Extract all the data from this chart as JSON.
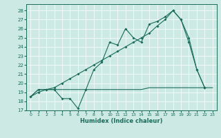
{
  "bg_color": "#cce9e4",
  "line_color": "#1a6b5a",
  "xlabel": "Humidex (Indice chaleur)",
  "xlim": [
    -0.5,
    23.5
  ],
  "ylim": [
    17,
    28.7
  ],
  "yticks": [
    17,
    18,
    19,
    20,
    21,
    22,
    23,
    24,
    25,
    26,
    27,
    28
  ],
  "xticks": [
    0,
    1,
    2,
    3,
    4,
    5,
    6,
    7,
    8,
    9,
    10,
    11,
    12,
    13,
    14,
    15,
    16,
    17,
    18,
    19,
    20,
    21,
    22,
    23
  ],
  "line1_x": [
    0,
    1,
    2,
    3,
    4,
    5,
    6,
    7,
    8,
    9,
    10,
    11,
    12,
    13,
    14,
    15,
    16,
    17,
    18,
    19,
    20,
    21,
    22
  ],
  "line1_y": [
    18.5,
    19.3,
    19.3,
    19.3,
    18.3,
    18.3,
    17.2,
    19.3,
    21.5,
    22.3,
    24.5,
    24.2,
    26.0,
    25.0,
    24.5,
    26.5,
    26.8,
    27.3,
    28.0,
    27.0,
    24.5,
    21.5,
    19.5
  ],
  "line2_x": [
    0,
    1,
    2,
    3,
    4,
    5,
    6,
    7,
    8,
    9,
    10,
    11,
    12,
    13,
    14,
    15,
    16,
    17,
    18,
    19,
    20,
    21,
    22,
    23
  ],
  "line2_y": [
    18.5,
    19.3,
    19.3,
    19.3,
    19.3,
    19.3,
    19.3,
    19.3,
    19.3,
    19.3,
    19.3,
    19.3,
    19.3,
    19.3,
    19.3,
    19.5,
    19.5,
    19.5,
    19.5,
    19.5,
    19.5,
    19.5,
    19.5,
    19.5
  ],
  "line3_x": [
    0,
    1,
    2,
    3,
    4,
    5,
    6,
    7,
    8,
    9,
    10,
    11,
    12,
    13,
    14,
    15,
    16,
    17,
    18,
    19,
    20,
    21,
    22
  ],
  "line3_y": [
    18.5,
    19.0,
    19.3,
    19.5,
    20.0,
    20.5,
    21.0,
    21.5,
    22.0,
    22.5,
    23.0,
    23.5,
    24.0,
    24.5,
    25.0,
    25.5,
    26.3,
    27.0,
    28.0,
    27.0,
    25.0,
    21.5,
    19.5
  ]
}
